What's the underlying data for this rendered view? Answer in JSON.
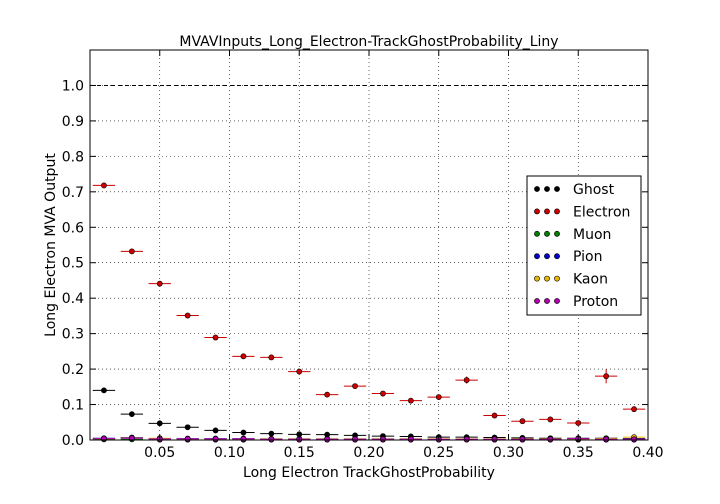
{
  "chart_data": {
    "type": "scatter",
    "title": "MVAVInputs_Long_Electron-TrackGhostProbability_Liny",
    "xlabel": "Long Electron TrackGhostProbability",
    "ylabel": "Long Electron MVA Output",
    "xlim": [
      0.0,
      0.4
    ],
    "ylim": [
      0.0,
      1.1
    ],
    "xticks": [
      "0.05",
      "0.10",
      "0.15",
      "0.20",
      "0.25",
      "0.30",
      "0.35",
      "0.40"
    ],
    "yticks": [
      "0.0",
      "0.1",
      "0.2",
      "0.3",
      "0.4",
      "0.5",
      "0.6",
      "0.7",
      "0.8",
      "0.9",
      "1.0"
    ],
    "grid": true,
    "reference_line": 1.0,
    "legend_position": "right",
    "bin_half_width": 0.008,
    "series": [
      {
        "name": "Ghost",
        "color": "#000000",
        "x": [
          0.01,
          0.03,
          0.05,
          0.07,
          0.09,
          0.11,
          0.13,
          0.15,
          0.17,
          0.19,
          0.21,
          0.23,
          0.25,
          0.27,
          0.29,
          0.31,
          0.33,
          0.35,
          0.37,
          0.39
        ],
        "y": [
          0.14,
          0.073,
          0.047,
          0.036,
          0.027,
          0.021,
          0.018,
          0.016,
          0.015,
          0.013,
          0.011,
          0.01,
          0.008,
          0.008,
          0.007,
          0.006,
          0.005,
          0.005,
          0.005,
          0.004
        ],
        "err": [
          0.004,
          0.003,
          0.002,
          0.002,
          0.002,
          0.002,
          0.002,
          0.002,
          0.002,
          0.002,
          0.002,
          0.002,
          0.002,
          0.002,
          0.002,
          0.002,
          0.002,
          0.002,
          0.002,
          0.002
        ]
      },
      {
        "name": "Electron",
        "color": "#cc0000",
        "x": [
          0.01,
          0.03,
          0.05,
          0.07,
          0.09,
          0.11,
          0.13,
          0.15,
          0.17,
          0.19,
          0.21,
          0.23,
          0.25,
          0.27,
          0.29,
          0.31,
          0.33,
          0.35,
          0.37,
          0.39
        ],
        "y": [
          0.718,
          0.532,
          0.441,
          0.351,
          0.289,
          0.236,
          0.233,
          0.193,
          0.128,
          0.152,
          0.131,
          0.111,
          0.121,
          0.169,
          0.069,
          0.053,
          0.058,
          0.048,
          0.18,
          0.087
        ],
        "err": [
          0.004,
          0.004,
          0.004,
          0.004,
          0.005,
          0.005,
          0.005,
          0.005,
          0.005,
          0.006,
          0.006,
          0.007,
          0.007,
          0.01,
          0.006,
          0.006,
          0.007,
          0.007,
          0.02,
          0.008
        ]
      },
      {
        "name": "Muon",
        "color": "#008000",
        "x": [
          0.01,
          0.03,
          0.05,
          0.07,
          0.09,
          0.11,
          0.13,
          0.15,
          0.17,
          0.19,
          0.21,
          0.23,
          0.25,
          0.27,
          0.29,
          0.31,
          0.33,
          0.35,
          0.37,
          0.39
        ],
        "y": [
          0.002,
          0.002,
          0.001,
          0.001,
          0.001,
          0.001,
          0.001,
          0.001,
          0.001,
          0.001,
          0.001,
          0.001,
          0.001,
          0.001,
          0.001,
          0.001,
          0.001,
          0.001,
          0.001,
          0.001
        ],
        "err": [
          0.001,
          0.001,
          0.001,
          0.001,
          0.001,
          0.001,
          0.001,
          0.001,
          0.001,
          0.001,
          0.001,
          0.001,
          0.001,
          0.001,
          0.001,
          0.001,
          0.001,
          0.001,
          0.001,
          0.001
        ]
      },
      {
        "name": "Pion",
        "color": "#0000cc",
        "x": [
          0.01,
          0.03,
          0.05,
          0.07,
          0.09,
          0.11,
          0.13,
          0.15,
          0.17,
          0.19,
          0.21,
          0.23,
          0.25,
          0.27,
          0.29,
          0.31,
          0.33,
          0.35,
          0.37,
          0.39
        ],
        "y": [
          0.005,
          0.007,
          0.004,
          0.004,
          0.004,
          0.004,
          0.003,
          0.003,
          0.003,
          0.003,
          0.003,
          0.003,
          0.002,
          0.002,
          0.002,
          0.002,
          0.002,
          0.002,
          0.002,
          0.002
        ],
        "err": [
          0.001,
          0.001,
          0.001,
          0.001,
          0.001,
          0.001,
          0.001,
          0.001,
          0.001,
          0.001,
          0.001,
          0.001,
          0.001,
          0.001,
          0.001,
          0.001,
          0.001,
          0.001,
          0.001,
          0.001
        ]
      },
      {
        "name": "Kaon",
        "color": "#e6b800",
        "x": [
          0.01,
          0.03,
          0.05,
          0.07,
          0.09,
          0.11,
          0.13,
          0.15,
          0.17,
          0.19,
          0.21,
          0.23,
          0.25,
          0.27,
          0.29,
          0.31,
          0.33,
          0.35,
          0.37,
          0.39
        ],
        "y": [
          0.004,
          0.006,
          0.005,
          0.003,
          0.003,
          0.003,
          0.003,
          0.003,
          0.003,
          0.003,
          0.003,
          0.003,
          0.003,
          0.003,
          0.003,
          0.003,
          0.003,
          0.003,
          0.004,
          0.008
        ],
        "err": [
          0.001,
          0.001,
          0.001,
          0.001,
          0.001,
          0.001,
          0.001,
          0.001,
          0.001,
          0.001,
          0.001,
          0.001,
          0.001,
          0.001,
          0.001,
          0.001,
          0.001,
          0.001,
          0.002,
          0.003
        ]
      },
      {
        "name": "Proton",
        "color": "#b000b0",
        "x": [
          0.01,
          0.03,
          0.05,
          0.07,
          0.09,
          0.11,
          0.13,
          0.15,
          0.17,
          0.19,
          0.21,
          0.23,
          0.25,
          0.27,
          0.29,
          0.31,
          0.33,
          0.35,
          0.37,
          0.39
        ],
        "y": [
          0.004,
          0.005,
          0.003,
          0.003,
          0.003,
          0.003,
          0.002,
          0.002,
          0.002,
          0.002,
          0.002,
          0.002,
          0.002,
          0.002,
          0.002,
          0.002,
          0.002,
          0.004,
          0.002,
          0.002
        ],
        "err": [
          0.001,
          0.001,
          0.001,
          0.001,
          0.001,
          0.001,
          0.001,
          0.001,
          0.001,
          0.001,
          0.001,
          0.001,
          0.001,
          0.001,
          0.001,
          0.001,
          0.001,
          0.001,
          0.001,
          0.001
        ]
      }
    ]
  }
}
